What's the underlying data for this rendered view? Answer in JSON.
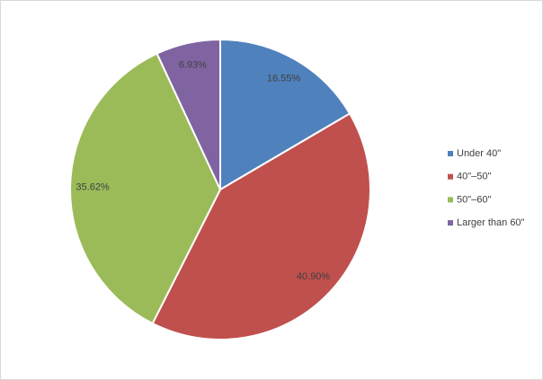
{
  "chart_data": {
    "type": "pie",
    "categories": [
      "Under 40\"",
      "40\"–50\"",
      "50\"–60\"",
      "Larger than 60\""
    ],
    "values": [
      16.55,
      40.9,
      35.62,
      6.93
    ],
    "value_labels": [
      "16.55%",
      "40.90%",
      "35.62%",
      "6.93%"
    ],
    "colors": [
      "#4f81bd",
      "#c0504d",
      "#9bbb59",
      "#8064a2"
    ],
    "legend": "right"
  }
}
